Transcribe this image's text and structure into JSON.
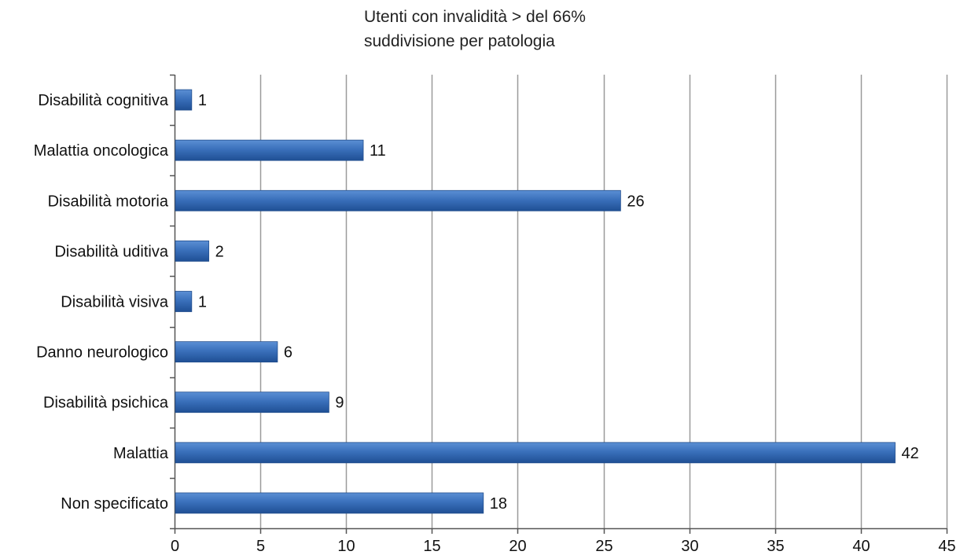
{
  "chart_data": {
    "type": "bar",
    "orientation": "horizontal",
    "title": "Utenti con invalidità > del 66%",
    "subtitle": "suddivisione per patologia",
    "categories": [
      "Disabilità cognitiva",
      "Malattia oncologica",
      "Disabilità motoria",
      "Disabilità uditiva",
      "Disabilità visiva",
      "Danno neurologico",
      "Disabilità psichica",
      "Malattia",
      "Non specificato"
    ],
    "values": [
      1,
      11,
      26,
      2,
      1,
      6,
      9,
      42,
      18
    ],
    "xlim": [
      0,
      45
    ],
    "xticks": [
      0,
      5,
      10,
      15,
      20,
      25,
      30,
      35,
      40,
      45
    ],
    "grid": true,
    "legend": "none",
    "bar_color": "#2f64ad",
    "grid_color": "#9a9a9a"
  }
}
